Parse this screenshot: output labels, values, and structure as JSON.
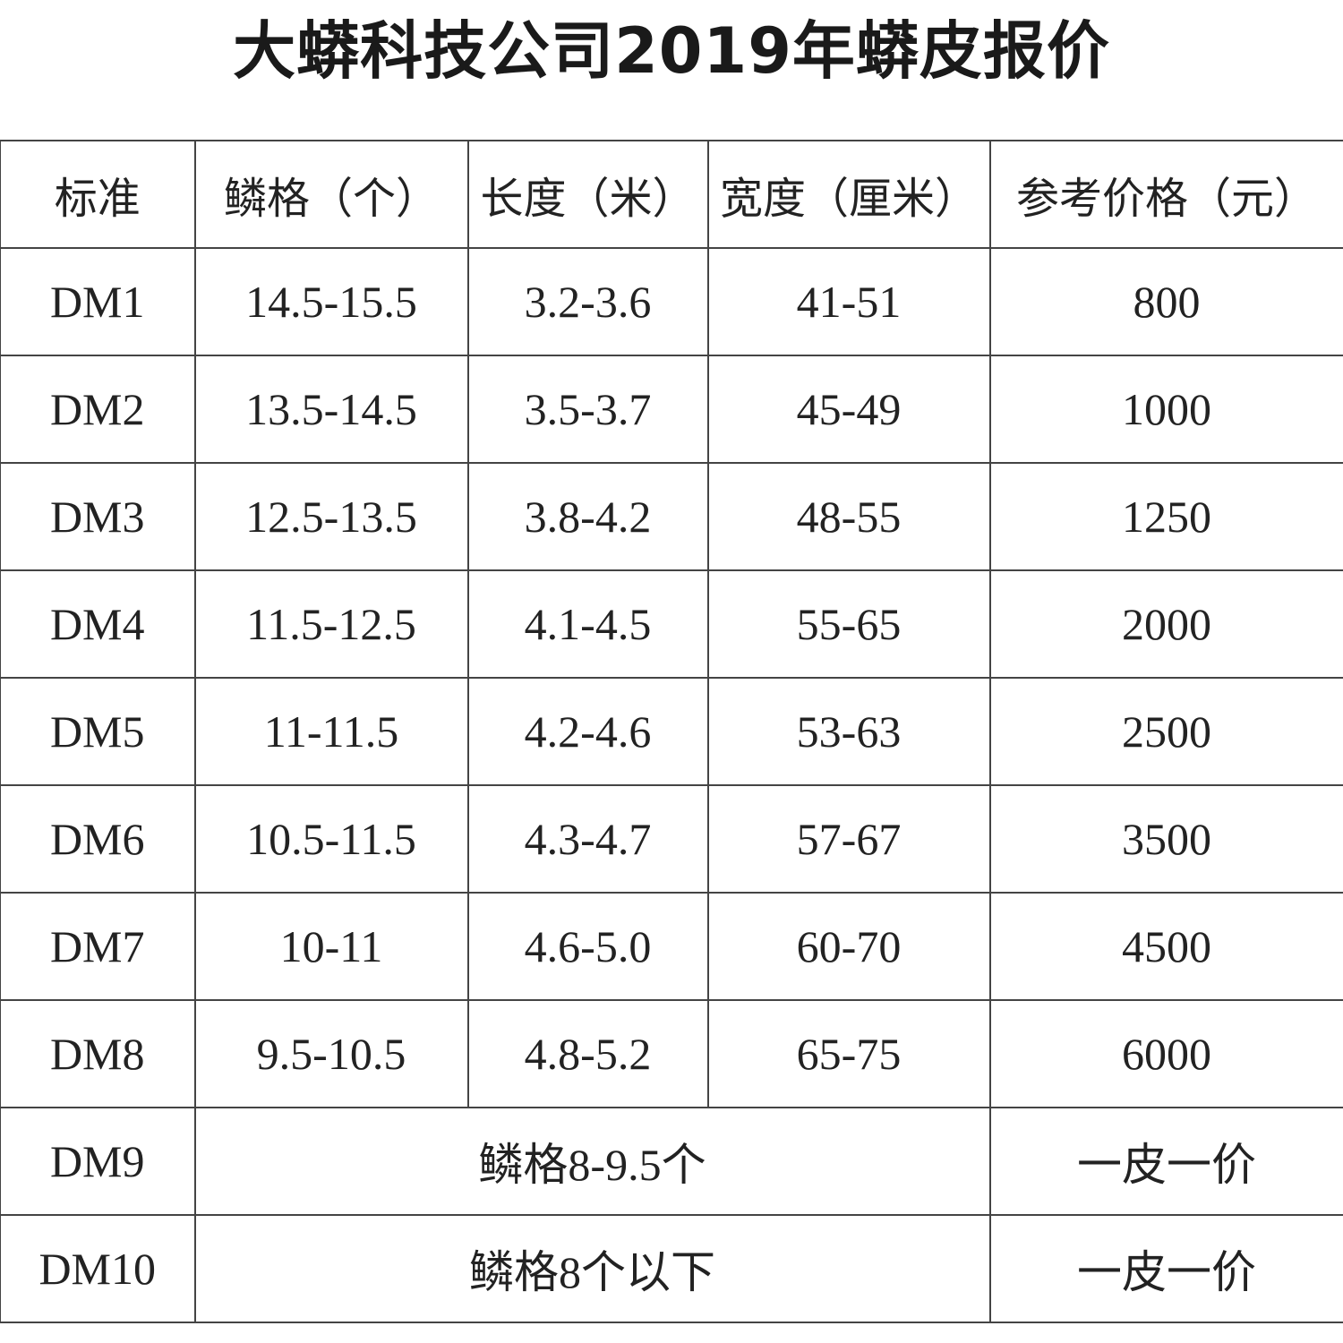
{
  "title": "大蟒科技公司2019年蟒皮报价",
  "table": {
    "headers": [
      "标准",
      "鳞格（个）",
      "长度（米）",
      "宽度（厘米）",
      "参考价格（元）"
    ],
    "rows": [
      [
        "DM1",
        "14.5-15.5",
        "3.2-3.6",
        "41-51",
        "800"
      ],
      [
        "DM2",
        "13.5-14.5",
        "3.5-3.7",
        "45-49",
        "1000"
      ],
      [
        "DM3",
        "12.5-13.5",
        "3.8-4.2",
        "48-55",
        "1250"
      ],
      [
        "DM4",
        "11.5-12.5",
        "4.1-4.5",
        "55-65",
        "2000"
      ],
      [
        "DM5",
        "11-11.5",
        "4.2-4.6",
        "53-63",
        "2500"
      ],
      [
        "DM6",
        "10.5-11.5",
        "4.3-4.7",
        "57-67",
        "3500"
      ],
      [
        "DM7",
        "10-11",
        "4.6-5.0",
        "60-70",
        "4500"
      ],
      [
        "DM8",
        "9.5-10.5",
        "4.8-5.2",
        "65-75",
        "6000"
      ]
    ],
    "merged_rows": [
      [
        "DM9",
        "鳞格8-9.5个",
        "一皮一价"
      ],
      [
        "DM10",
        "鳞格8个以下",
        "一皮一价"
      ]
    ]
  }
}
